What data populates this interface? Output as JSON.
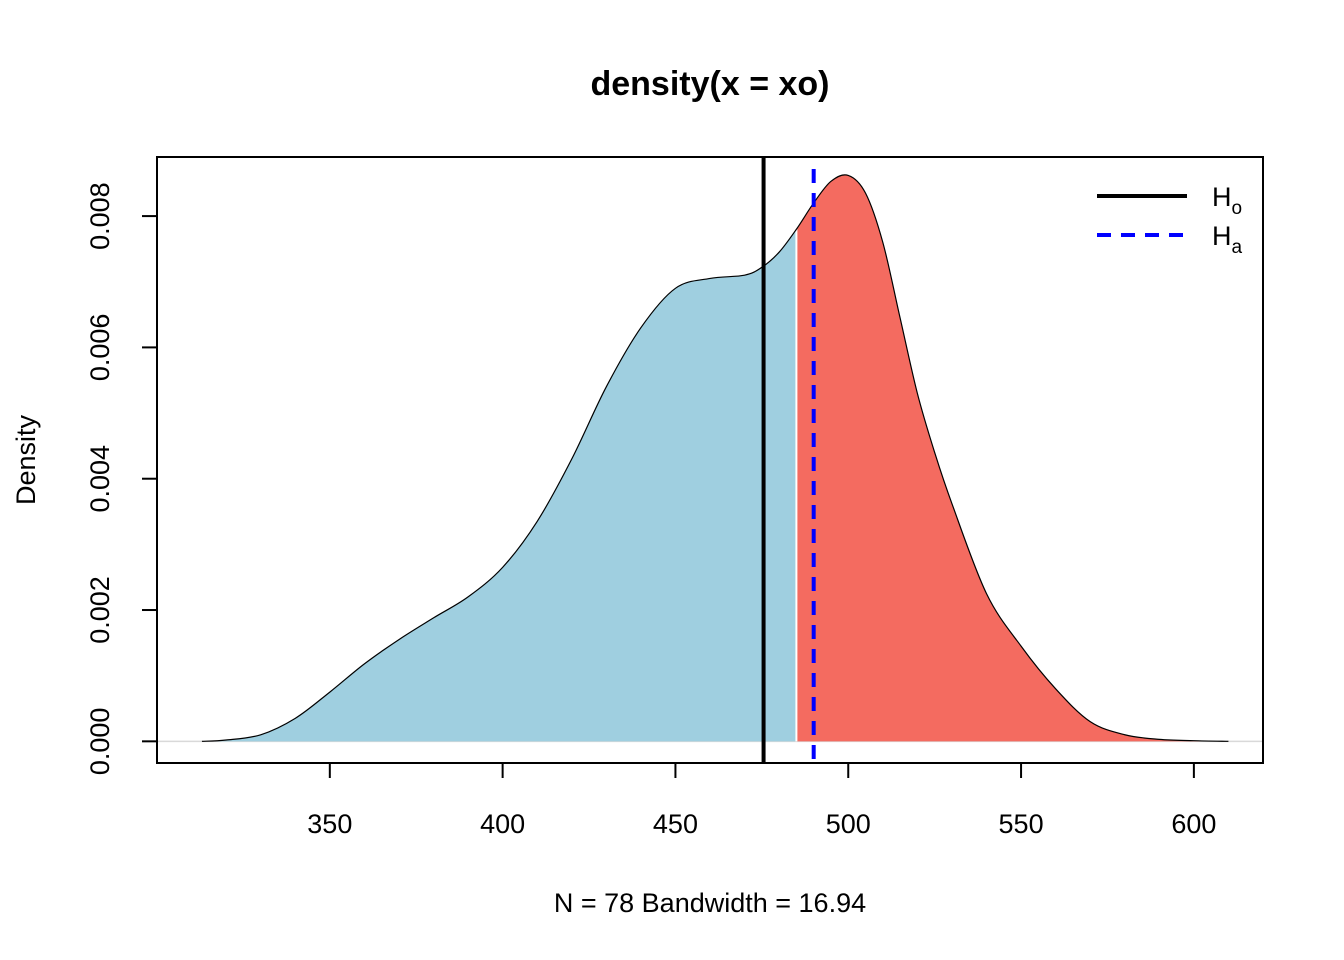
{
  "chart_data": {
    "type": "area",
    "title": "density(x = xo)",
    "xlabel": "N = 78   Bandwidth = 16.94",
    "ylabel": "Density",
    "xlim": [
      300,
      620
    ],
    "ylim": [
      -0.00033,
      0.0089
    ],
    "x_ticks": [
      350,
      400,
      450,
      500,
      550,
      600
    ],
    "y_ticks": [
      0.0,
      0.002,
      0.004,
      0.006,
      0.008
    ],
    "x_tick_labels": [
      "350",
      "400",
      "450",
      "500",
      "550",
      "600"
    ],
    "y_tick_labels": [
      "0.000",
      "0.002",
      "0.004",
      "0.006",
      "0.008"
    ],
    "grid": false,
    "density_curve": {
      "x": [
        313,
        320,
        330,
        340,
        350,
        360,
        370,
        380,
        390,
        400,
        410,
        420,
        430,
        440,
        450,
        460,
        470,
        475,
        480,
        485,
        490,
        495,
        500,
        505,
        510,
        515,
        520,
        525,
        530,
        540,
        550,
        560,
        570,
        580,
        590,
        600,
        610
      ],
      "y": [
        0.0,
        2e-05,
        0.0001,
        0.00035,
        0.00075,
        0.00118,
        0.00155,
        0.00188,
        0.0022,
        0.00265,
        0.00335,
        0.0043,
        0.0054,
        0.0063,
        0.0069,
        0.00705,
        0.0071,
        0.00722,
        0.00745,
        0.0078,
        0.0082,
        0.00853,
        0.00862,
        0.00835,
        0.0076,
        0.00645,
        0.0053,
        0.0044,
        0.00362,
        0.00225,
        0.00145,
        0.0008,
        0.0003,
        0.0001,
        3e-05,
        1e-05,
        0.0
      ]
    },
    "shading": {
      "split_x": 485,
      "left_color": "#9fcfe0",
      "right_color": "#f46b60"
    },
    "vertical_lines": [
      {
        "x": 475.5,
        "color": "#000000",
        "style": "solid"
      },
      {
        "x": 490,
        "color": "#0000ff",
        "style": "dashed"
      }
    ],
    "legend": {
      "position": "top-right",
      "entries": [
        {
          "main": "H",
          "sub": "o",
          "color": "#000000",
          "style": "solid"
        },
        {
          "main": "H",
          "sub": "a",
          "color": "#0000ff",
          "style": "dashed"
        }
      ]
    }
  }
}
